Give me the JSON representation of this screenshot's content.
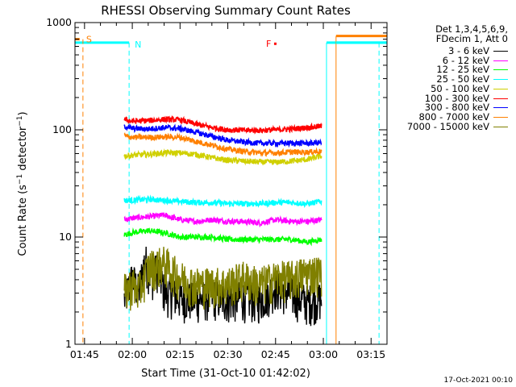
{
  "chart_data": {
    "type": "line",
    "title": "RHESSI Observing Summary Count Rates",
    "xlabel": "Start Time (31-Oct-10 01:42:02)",
    "ylabel": "Count Rate (s⁻¹ detector⁻¹)",
    "yscale": "log",
    "ylim": [
      1,
      1000
    ],
    "xlim_minutes": [
      102,
      200
    ],
    "x_ticks": [
      {
        "minute": 105,
        "label": "01:45"
      },
      {
        "minute": 120,
        "label": "02:00"
      },
      {
        "minute": 135,
        "label": "02:15"
      },
      {
        "minute": 150,
        "label": "02:30"
      },
      {
        "minute": 165,
        "label": "02:45"
      },
      {
        "minute": 180,
        "label": "03:00"
      },
      {
        "minute": 195,
        "label": "03:15"
      }
    ],
    "y_ticks": [
      {
        "value": 1,
        "label": "1"
      },
      {
        "value": 10,
        "label": "10"
      },
      {
        "value": 100,
        "label": "100"
      },
      {
        "value": 1000,
        "label": "1000"
      }
    ],
    "info_lines": [
      "Det 1,3,4,5,6,9,",
      "FDecim 1, Att 0"
    ],
    "series": [
      {
        "name": "3 - 6 keV",
        "color": "#000000",
        "points": [
          [
            117.5,
            2.5
          ],
          [
            120,
            4
          ],
          [
            122,
            3
          ],
          [
            124,
            6
          ],
          [
            126,
            4
          ],
          [
            128,
            5
          ],
          [
            130,
            3
          ],
          [
            135,
            2.6
          ],
          [
            140,
            2.5
          ],
          [
            145,
            2.7
          ],
          [
            150,
            2.5
          ],
          [
            155,
            2.6
          ],
          [
            160,
            2.5
          ],
          [
            165,
            3.3
          ],
          [
            170,
            2.8
          ],
          [
            175,
            2.4
          ],
          [
            179.5,
            2.6
          ]
        ]
      },
      {
        "name": "6 - 12 keV",
        "color": "#ff00ff",
        "points": [
          [
            117.5,
            14.5
          ],
          [
            120,
            15
          ],
          [
            125,
            15.5
          ],
          [
            130,
            16
          ],
          [
            135,
            14.5
          ],
          [
            140,
            14
          ],
          [
            145,
            14.5
          ],
          [
            150,
            14
          ],
          [
            155,
            14
          ],
          [
            160,
            13.5
          ],
          [
            165,
            14.5
          ],
          [
            170,
            14
          ],
          [
            175,
            14
          ],
          [
            179.5,
            14.5
          ]
        ]
      },
      {
        "name": "12 - 25 keV",
        "color": "#00ff00",
        "points": [
          [
            117.5,
            10.5
          ],
          [
            120,
            11
          ],
          [
            125,
            11.5
          ],
          [
            130,
            11
          ],
          [
            135,
            10
          ],
          [
            140,
            10
          ],
          [
            145,
            10
          ],
          [
            150,
            9.5
          ],
          [
            155,
            9.5
          ],
          [
            160,
            9.5
          ],
          [
            165,
            9.5
          ],
          [
            170,
            9.5
          ],
          [
            175,
            9
          ],
          [
            179.5,
            9.5
          ]
        ]
      },
      {
        "name": "25 - 50 keV",
        "color": "#00ffff",
        "points": [
          [
            117.5,
            22
          ],
          [
            120,
            22
          ],
          [
            125,
            22.5
          ],
          [
            130,
            22
          ],
          [
            135,
            21.5
          ],
          [
            140,
            21
          ],
          [
            145,
            21
          ],
          [
            150,
            20.5
          ],
          [
            155,
            20.5
          ],
          [
            160,
            20.5
          ],
          [
            165,
            21
          ],
          [
            170,
            21
          ],
          [
            175,
            20.5
          ],
          [
            179.5,
            21.5
          ]
        ]
      },
      {
        "name": "50 - 100 keV",
        "color": "#d0d000",
        "points": [
          [
            117.5,
            57
          ],
          [
            120,
            58
          ],
          [
            125,
            59
          ],
          [
            130,
            61
          ],
          [
            135,
            61
          ],
          [
            140,
            59
          ],
          [
            145,
            55
          ],
          [
            150,
            52
          ],
          [
            155,
            51
          ],
          [
            160,
            50
          ],
          [
            165,
            50
          ],
          [
            170,
            51
          ],
          [
            175,
            53
          ],
          [
            179.5,
            57
          ]
        ]
      },
      {
        "name": "100 - 300 keV",
        "color": "#ff0000",
        "points": [
          [
            117.5,
            125
          ],
          [
            120,
            120
          ],
          [
            125,
            122
          ],
          [
            130,
            125
          ],
          [
            135,
            124
          ],
          [
            140,
            113
          ],
          [
            145,
            105
          ],
          [
            150,
            100
          ],
          [
            155,
            99
          ],
          [
            160,
            99
          ],
          [
            165,
            100
          ],
          [
            170,
            102
          ],
          [
            175,
            105
          ],
          [
            179.5,
            108
          ]
        ]
      },
      {
        "name": "300 - 800 keV",
        "color": "#0000ff",
        "points": [
          [
            117.5,
            108
          ],
          [
            120,
            103
          ],
          [
            125,
            102
          ],
          [
            130,
            105
          ],
          [
            135,
            103
          ],
          [
            140,
            95
          ],
          [
            145,
            87
          ],
          [
            150,
            80
          ],
          [
            155,
            77
          ],
          [
            160,
            75
          ],
          [
            165,
            75
          ],
          [
            170,
            75
          ],
          [
            175,
            75
          ],
          [
            179.5,
            76
          ]
        ]
      },
      {
        "name": "800 - 7000 keV",
        "color": "#ff8000",
        "points": [
          [
            117.5,
            88
          ],
          [
            120,
            85
          ],
          [
            125,
            85
          ],
          [
            130,
            86
          ],
          [
            135,
            85
          ],
          [
            140,
            78
          ],
          [
            145,
            72
          ],
          [
            150,
            66
          ],
          [
            155,
            63
          ],
          [
            160,
            61
          ],
          [
            165,
            61
          ],
          [
            170,
            62
          ],
          [
            175,
            62
          ],
          [
            179.5,
            63
          ]
        ]
      },
      {
        "name": "7000 - 15000 keV",
        "color": "#808000",
        "points": [
          [
            117.5,
            3
          ],
          [
            120,
            3.5
          ],
          [
            122,
            3
          ],
          [
            125,
            5
          ],
          [
            130,
            5.5
          ],
          [
            135,
            4
          ],
          [
            140,
            3.5
          ],
          [
            145,
            3.5
          ],
          [
            150,
            3.5
          ],
          [
            155,
            4
          ],
          [
            160,
            3.5
          ],
          [
            165,
            4
          ],
          [
            170,
            4
          ],
          [
            175,
            4.5
          ],
          [
            179.5,
            4.5
          ]
        ]
      }
    ],
    "saa_flag": {
      "label": "S",
      "color": "#ff8000",
      "value": 700,
      "minute_start": 102,
      "minute_end": 104.5,
      "line_minute": 104.5
    },
    "night_flag": {
      "label": "N",
      "color": "#00ffff",
      "value": 650,
      "minute_start": 102,
      "minute_end": 119,
      "line_minute": 119
    },
    "flare_flag": {
      "label": "F",
      "color": "#ff0000",
      "minute": 162,
      "value": 640
    },
    "right_flags": [
      {
        "color": "#00ffff",
        "minute_start": 181,
        "value": 650,
        "line_minute": 181
      },
      {
        "color": "#ff8000",
        "minute_start": 184,
        "value": 750,
        "line_minute": 184
      },
      {
        "color": "#00ffff",
        "minute_start": 184,
        "value": 650,
        "line_minute": 197.5
      }
    ]
  },
  "footer": {
    "timestamp": "17-Oct-2021 00:10"
  }
}
